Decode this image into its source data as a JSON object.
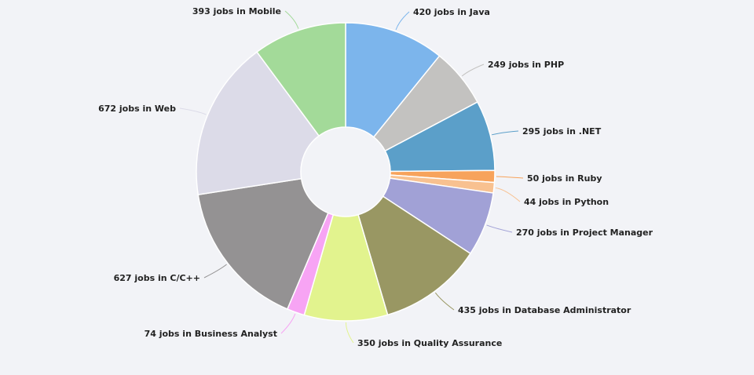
{
  "chart_data": {
    "type": "pie",
    "donut": true,
    "start_angle_deg": 0,
    "direction": "clockwise",
    "slices": [
      {
        "name": "Java",
        "value": 420,
        "color": "#7cb5ec",
        "label": "420 jobs in Java"
      },
      {
        "name": "PHP",
        "value": 249,
        "color": "#c3c2c0",
        "label": "249 jobs in PHP"
      },
      {
        "name": ".NET",
        "value": 295,
        "color": "#5b9fc9",
        "label": "295 jobs in .NET"
      },
      {
        "name": "Ruby",
        "value": 50,
        "color": "#f7a35c",
        "label": "50 jobs in Ruby"
      },
      {
        "name": "Python",
        "value": 44,
        "color": "#f8c190",
        "label": "44 jobs in Python"
      },
      {
        "name": "Project Manager",
        "value": 270,
        "color": "#a1a1d6",
        "label": "270 jobs in Project Manager"
      },
      {
        "name": "Database Administrator",
        "value": 435,
        "color": "#999763",
        "label": "435 jobs in Database Administrator"
      },
      {
        "name": "Quality Assurance",
        "value": 350,
        "color": "#e2f38e",
        "label": "350 jobs in Quality Assurance"
      },
      {
        "name": "Business Analyst",
        "value": 74,
        "color": "#f7a4f4",
        "label": "74 jobs in Business Analyst"
      },
      {
        "name": "C/C++",
        "value": 627,
        "color": "#949293",
        "label": "627 jobs in C/C++"
      },
      {
        "name": "Web",
        "value": 672,
        "color": "#dcdbe8",
        "label": "672 jobs in Web"
      },
      {
        "name": "Mobile",
        "value": 393,
        "color": "#a3da99",
        "label": "393 jobs in Mobile"
      }
    ]
  }
}
